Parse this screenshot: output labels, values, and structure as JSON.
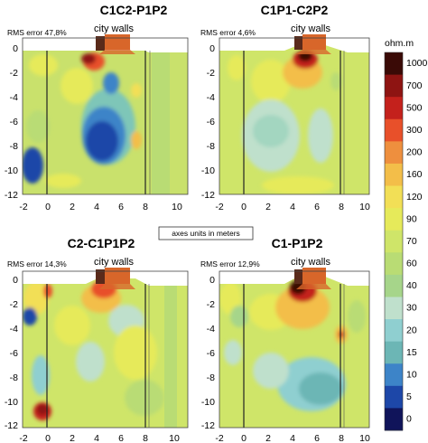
{
  "panels": [
    {
      "title": "C1C2-P1P2",
      "rms": "RMS error 47,8%",
      "walls": "city walls"
    },
    {
      "title": "C1P1-C2P2",
      "rms": "RMS error 4,6%",
      "walls": "city walls"
    },
    {
      "title": "C2-C1P1P2",
      "rms": "RMS error 14,3%",
      "walls": "city walls"
    },
    {
      "title": "C1-P1P2",
      "rms": "RMS error 12,9%",
      "walls": "city walls"
    }
  ],
  "axis": {
    "x_ticks": [
      "-2",
      "0",
      "2",
      "4",
      "6",
      "8",
      "10"
    ],
    "y_ticks": [
      "0",
      "-2",
      "-4",
      "-6",
      "-8",
      "-10",
      "-12"
    ],
    "x_range": [
      -2.6,
      10
    ],
    "y_range": [
      -12,
      0.6
    ]
  },
  "axes_note": "axes units in meters",
  "legend": {
    "unit": "ohm.m",
    "labels": [
      "1000",
      "700",
      "500",
      "300",
      "200",
      "160",
      "120",
      "90",
      "70",
      "60",
      "40",
      "30",
      "20",
      "15",
      "10",
      "5",
      "0"
    ],
    "colors": [
      "#3a0a06",
      "#8e1412",
      "#c4211c",
      "#e8502a",
      "#ee8f3e",
      "#f3be49",
      "#f2df56",
      "#e6ea5a",
      "#cfe569",
      "#b9dc74",
      "#a6d58a",
      "#bfe0cc",
      "#8fcfd0",
      "#6cb6b5",
      "#3d84c8",
      "#1d47a8",
      "#10145a"
    ]
  },
  "colors": {
    "background_field": "#c8e06e",
    "wall_fill": "#d8662a",
    "wall_dark": "#5a2a1a"
  }
}
